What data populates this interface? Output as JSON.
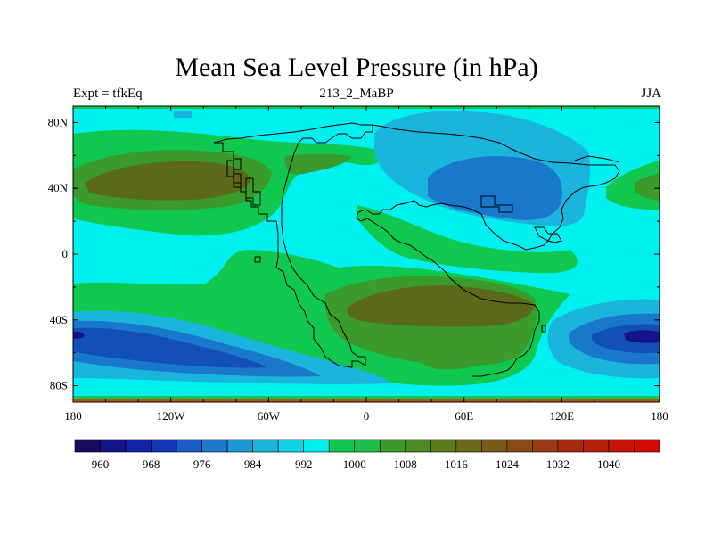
{
  "title": "Mean Sea Level Pressure (in hPa)",
  "subtitle_left": "Expt = tfkEq",
  "subtitle_center": "213_2_MaBP",
  "subtitle_right": "JJA",
  "y_ticks": [
    "80N",
    "40N",
    "0",
    "40S",
    "80S"
  ],
  "x_ticks": [
    "180",
    "120W",
    "60W",
    "0",
    "60E",
    "120E",
    "180"
  ],
  "colorbar": {
    "labels": [
      "960",
      "968",
      "976",
      "984",
      "992",
      "1000",
      "1008",
      "1016",
      "1024",
      "1032",
      "1040"
    ],
    "colors": [
      "#1a0a5e",
      "#14148a",
      "#1224a6",
      "#1238b8",
      "#1a5cc8",
      "#1d78cc",
      "#1c98d2",
      "#1ab4dc",
      "#10d4e6",
      "#00f0f0",
      "#10c850",
      "#1ebe4a",
      "#3a9a2a",
      "#4e8a22",
      "#5a7a1c",
      "#6a6a1a",
      "#7a5a18",
      "#8a4a14",
      "#9a3a12",
      "#a82a10",
      "#b81e0c",
      "#c81408",
      "#d40a04"
    ]
  },
  "map_data": {
    "variable": "Mean Sea Level Pressure",
    "units": "hPa",
    "season": "JJA",
    "lon_range": [
      -180,
      180
    ],
    "lat_range": [
      -90,
      90
    ],
    "colors": {
      "background": "#00f0f0",
      "level_1004": "#10c850",
      "level_1012": "#3a9a2a",
      "level_1020": "#5a6a1a",
      "level_992": "#1ab4dc",
      "level_984": "#1a78cc",
      "level_976": "#1250b8",
      "level_968": "#14148a"
    }
  }
}
